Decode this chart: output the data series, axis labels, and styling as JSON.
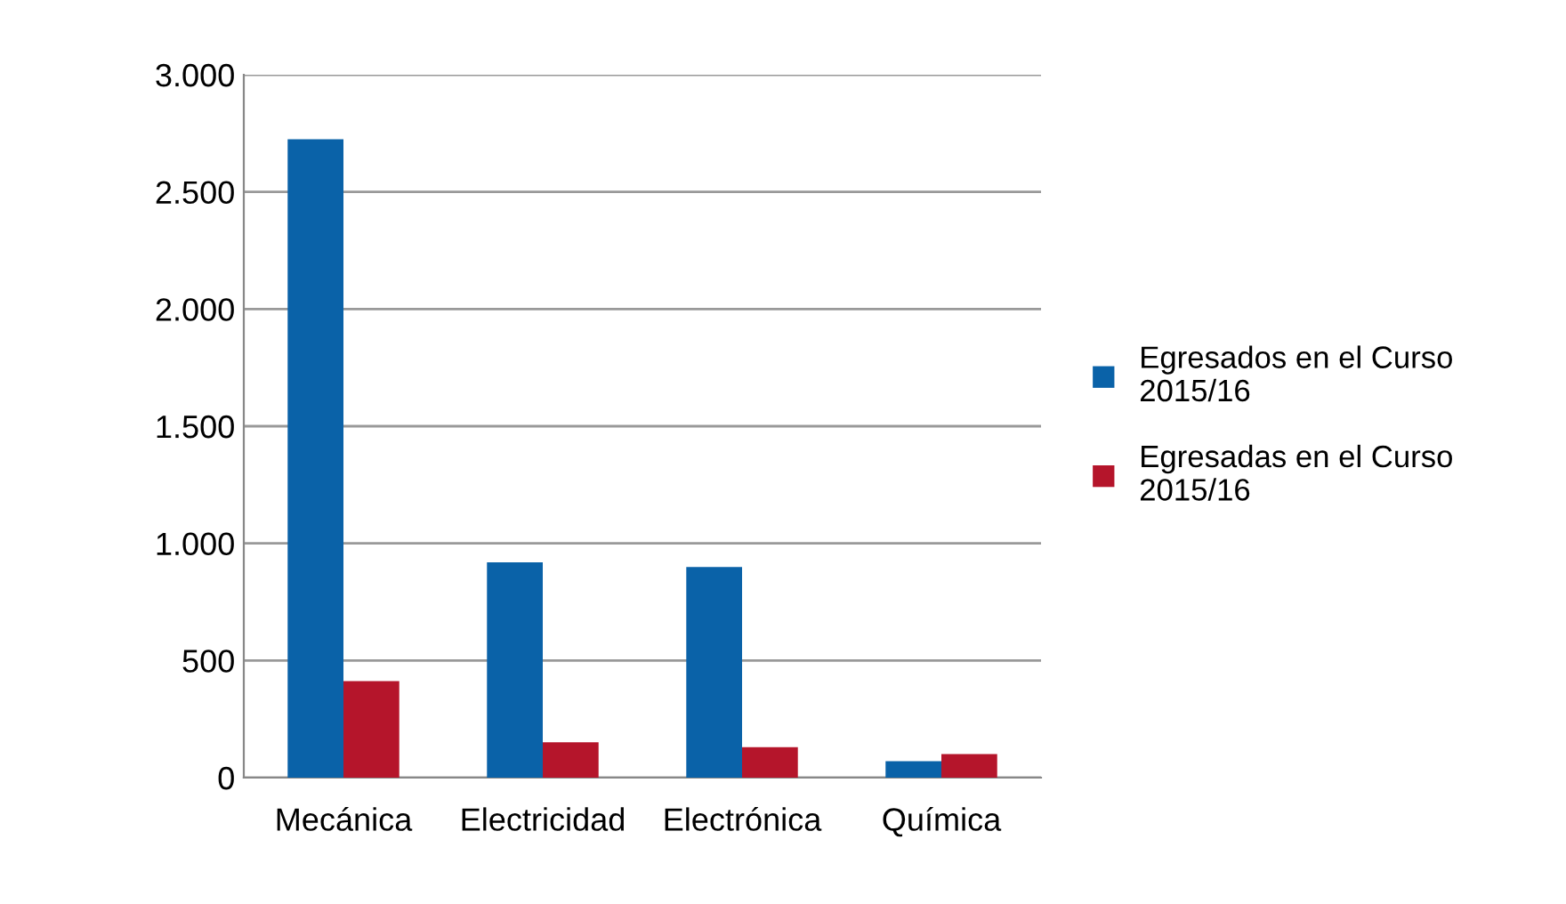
{
  "chart_data": {
    "type": "bar",
    "categories": [
      "Mecánica",
      "Electricidad",
      "Electrónica",
      "Química"
    ],
    "series": [
      {
        "name": "Egresados en el Curso 2015/16",
        "color": "#0a62a8",
        "values": [
          2725,
          919,
          899,
          70
        ]
      },
      {
        "name": "Egresadas en el Curso 2015/16",
        "color": "#b5152b",
        "values": [
          412,
          151,
          130,
          101
        ]
      }
    ],
    "ylim": [
      0,
      3000
    ],
    "yticks": [
      0,
      500,
      {
        "value": 1000,
        "label": "1.000"
      },
      {
        "value": 1500,
        "label": "1.500"
      },
      {
        "value": 2000,
        "label": "2.000"
      },
      {
        "value": 2500,
        "label": "2.500"
      },
      {
        "value": 3000,
        "label": "3.000"
      }
    ],
    "grid": "y",
    "legend": "right"
  }
}
